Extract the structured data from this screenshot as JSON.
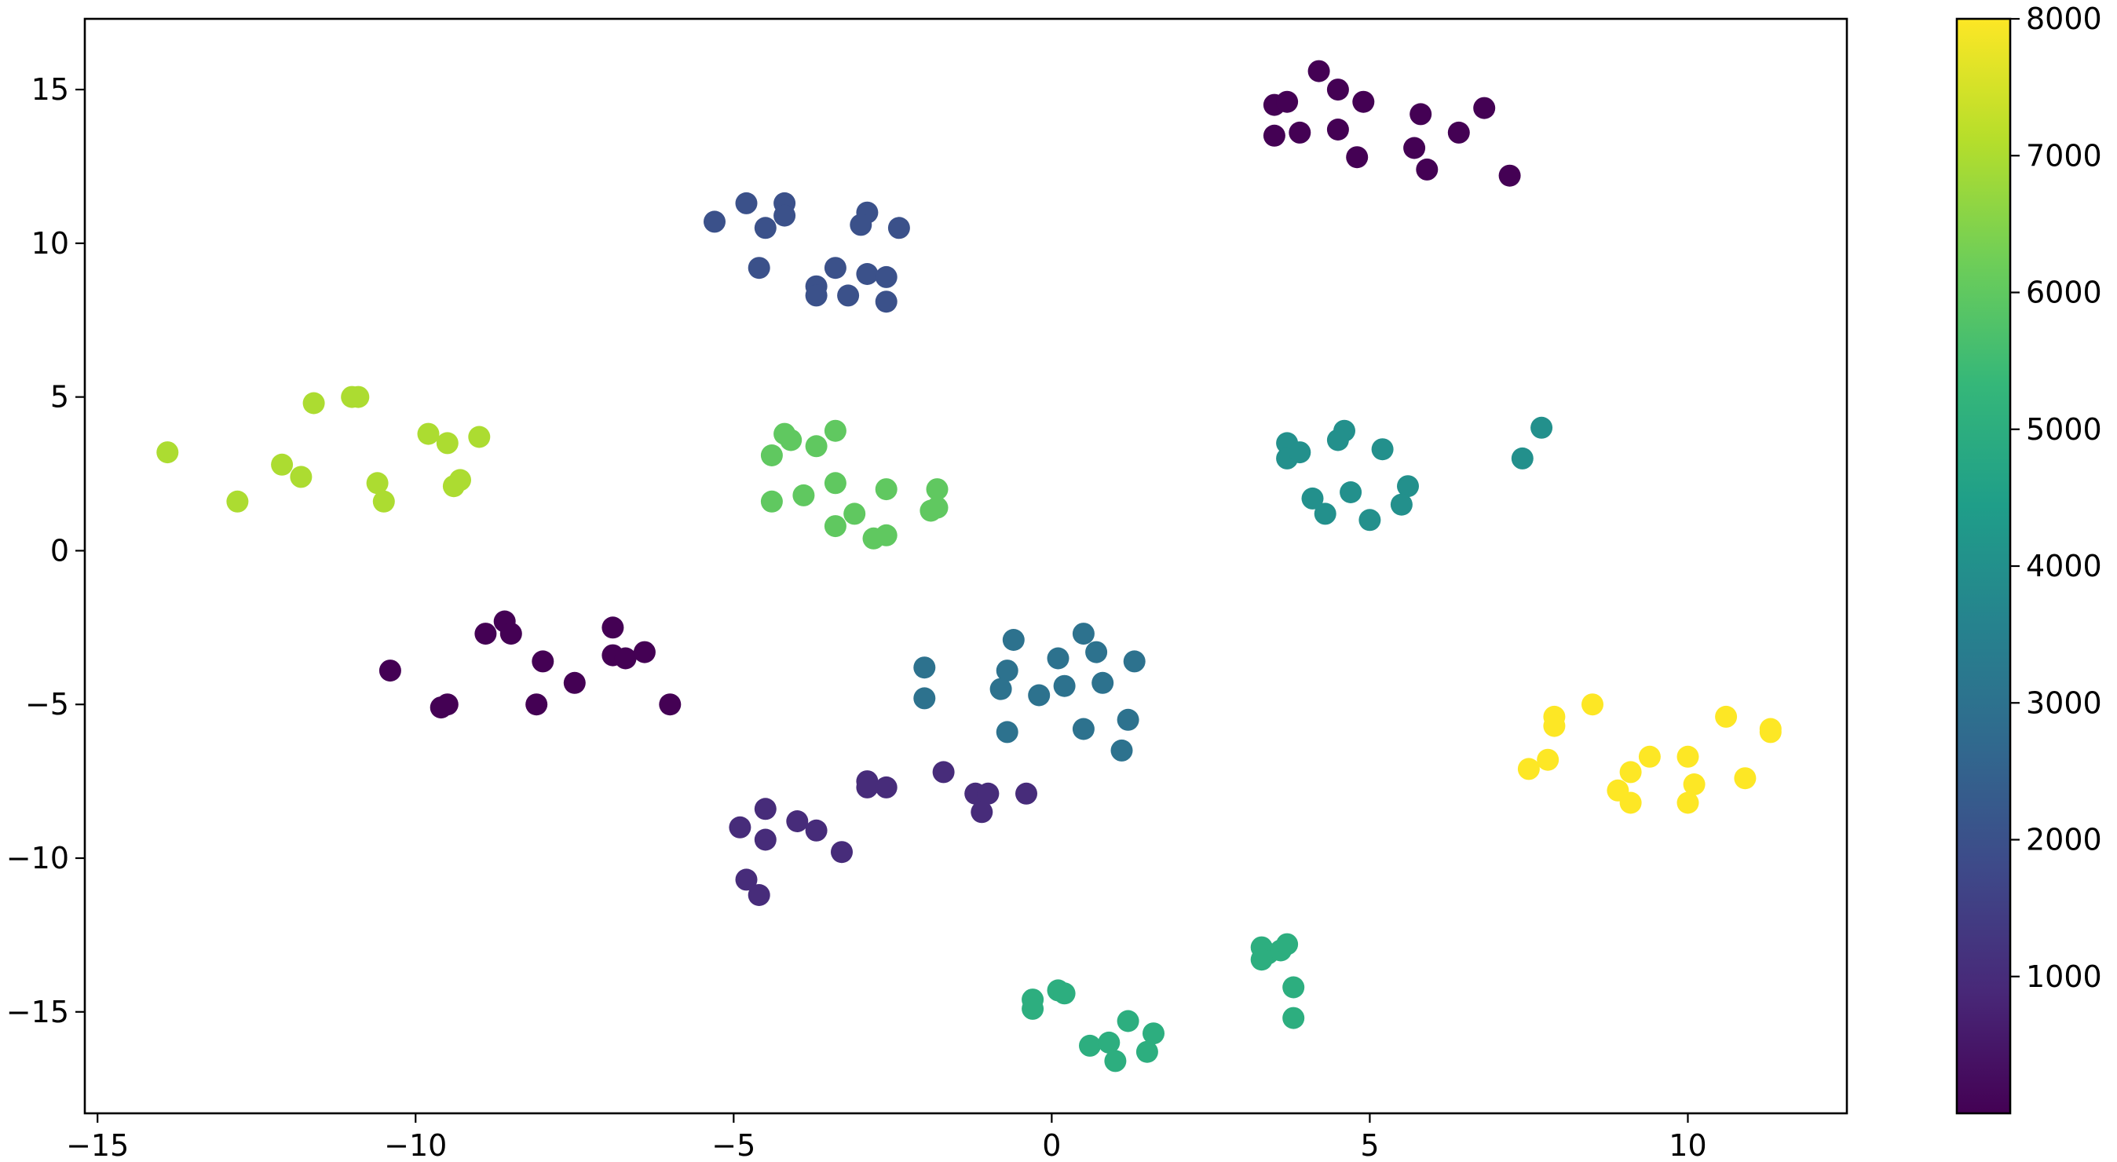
{
  "chart_data": {
    "type": "scatter",
    "title": "",
    "xlabel": "",
    "ylabel": "",
    "xlim": [
      -15.2,
      12.5
    ],
    "ylim": [
      -18.3,
      17.3
    ],
    "xticks": [
      -15,
      -10,
      -5,
      0,
      5,
      10
    ],
    "xtick_labels": [
      "−15",
      "−10",
      "−5",
      "0",
      "5",
      "10"
    ],
    "yticks": [
      -15,
      -10,
      -5,
      0,
      5,
      10,
      15
    ],
    "ytick_labels": [
      "−15",
      "−10",
      "−5",
      "0",
      "5",
      "10",
      "15"
    ],
    "grid": false,
    "colormap": "viridis",
    "colorbar": {
      "range": [
        0,
        8000
      ],
      "ticks": [
        1000,
        2000,
        3000,
        4000,
        5000,
        6000,
        7000,
        8000
      ],
      "tick_labels": [
        "1000",
        "2000",
        "3000",
        "4000",
        "5000",
        "6000",
        "7000",
        "8000"
      ]
    },
    "colormap_stops": [
      "#440154",
      "#482878",
      "#3e4989",
      "#31688e",
      "#26828e",
      "#1f9e89",
      "#35b779",
      "#6ece58",
      "#b5de2b",
      "#fde725"
    ],
    "groups": [
      {
        "value": 0,
        "points": [
          [
            4.2,
            15.6
          ],
          [
            3.5,
            14.5
          ],
          [
            3.7,
            14.6
          ],
          [
            4.5,
            15.0
          ],
          [
            4.9,
            14.6
          ],
          [
            5.8,
            14.2
          ],
          [
            6.8,
            14.4
          ],
          [
            3.5,
            13.5
          ],
          [
            3.9,
            13.6
          ],
          [
            4.5,
            13.7
          ],
          [
            5.7,
            13.1
          ],
          [
            6.4,
            13.6
          ],
          [
            4.8,
            12.8
          ],
          [
            5.9,
            12.4
          ],
          [
            7.2,
            12.2
          ]
        ]
      },
      {
        "value": 0,
        "points": [
          [
            -8.6,
            -2.3
          ],
          [
            -8.9,
            -2.7
          ],
          [
            -8.5,
            -2.7
          ],
          [
            -6.9,
            -2.5
          ],
          [
            -6.9,
            -3.4
          ],
          [
            -6.7,
            -3.5
          ],
          [
            -6.4,
            -3.3
          ],
          [
            -10.4,
            -3.9
          ],
          [
            -8.0,
            -3.6
          ],
          [
            -7.5,
            -4.3
          ],
          [
            -9.6,
            -5.1
          ],
          [
            -9.5,
            -5.0
          ],
          [
            -8.1,
            -5.0
          ],
          [
            -6.0,
            -5.0
          ]
        ]
      },
      {
        "value": 1000,
        "points": [
          [
            -2.9,
            -7.5
          ],
          [
            -2.9,
            -7.7
          ],
          [
            -2.6,
            -7.7
          ],
          [
            -1.7,
            -7.2
          ],
          [
            -1.2,
            -7.9
          ],
          [
            -1.0,
            -7.9
          ],
          [
            -0.4,
            -7.9
          ],
          [
            -1.1,
            -8.5
          ],
          [
            -4.5,
            -8.4
          ],
          [
            -4.0,
            -8.8
          ],
          [
            -3.7,
            -9.1
          ],
          [
            -4.9,
            -9.0
          ],
          [
            -4.5,
            -9.4
          ],
          [
            -3.3,
            -9.8
          ],
          [
            -4.8,
            -10.7
          ],
          [
            -4.6,
            -11.2
          ]
        ]
      },
      {
        "value": 2000,
        "points": [
          [
            -5.3,
            10.7
          ],
          [
            -4.8,
            11.3
          ],
          [
            -4.5,
            10.5
          ],
          [
            -4.2,
            11.3
          ],
          [
            -4.2,
            10.9
          ],
          [
            -2.9,
            11.0
          ],
          [
            -3.0,
            10.6
          ],
          [
            -2.4,
            10.5
          ],
          [
            -4.6,
            9.2
          ],
          [
            -3.4,
            9.2
          ],
          [
            -2.9,
            9.0
          ],
          [
            -2.6,
            8.9
          ],
          [
            -3.7,
            8.6
          ],
          [
            -3.7,
            8.3
          ],
          [
            -3.2,
            8.3
          ],
          [
            -2.6,
            8.1
          ]
        ]
      },
      {
        "value": 3000,
        "points": [
          [
            -2.0,
            -3.8
          ],
          [
            -0.6,
            -2.9
          ],
          [
            0.5,
            -2.7
          ],
          [
            0.7,
            -3.3
          ],
          [
            1.3,
            -3.6
          ],
          [
            0.1,
            -3.5
          ],
          [
            -0.7,
            -3.9
          ],
          [
            -0.8,
            -4.5
          ],
          [
            -0.2,
            -4.7
          ],
          [
            0.2,
            -4.4
          ],
          [
            0.8,
            -4.3
          ],
          [
            -2.0,
            -4.8
          ],
          [
            -0.7,
            -5.9
          ],
          [
            0.5,
            -5.8
          ],
          [
            1.2,
            -5.5
          ],
          [
            1.1,
            -6.5
          ]
        ]
      },
      {
        "value": 4000,
        "points": [
          [
            4.6,
            3.9
          ],
          [
            4.5,
            3.6
          ],
          [
            3.7,
            3.5
          ],
          [
            3.7,
            3.0
          ],
          [
            3.9,
            3.2
          ],
          [
            5.2,
            3.3
          ],
          [
            7.7,
            4.0
          ],
          [
            7.4,
            3.0
          ],
          [
            4.1,
            1.7
          ],
          [
            4.3,
            1.2
          ],
          [
            4.7,
            1.9
          ],
          [
            5.6,
            2.1
          ],
          [
            5.5,
            1.5
          ],
          [
            5.0,
            1.0
          ]
        ]
      },
      {
        "value": 5000,
        "points": [
          [
            3.3,
            -12.9
          ],
          [
            3.4,
            -13.1
          ],
          [
            3.6,
            -13.0
          ],
          [
            3.7,
            -12.8
          ],
          [
            3.3,
            -13.3
          ],
          [
            3.8,
            -14.2
          ],
          [
            3.8,
            -15.2
          ],
          [
            0.1,
            -14.3
          ],
          [
            0.2,
            -14.4
          ],
          [
            -0.3,
            -14.6
          ],
          [
            -0.3,
            -14.9
          ],
          [
            1.2,
            -15.3
          ],
          [
            1.6,
            -15.7
          ],
          [
            0.6,
            -16.1
          ],
          [
            0.9,
            -16.0
          ],
          [
            1.5,
            -16.3
          ],
          [
            1.0,
            -16.6
          ]
        ]
      },
      {
        "value": 6000,
        "points": [
          [
            -4.2,
            3.8
          ],
          [
            -3.4,
            3.9
          ],
          [
            -4.1,
            3.6
          ],
          [
            -3.7,
            3.4
          ],
          [
            -4.4,
            3.1
          ],
          [
            -3.4,
            2.2
          ],
          [
            -3.9,
            1.8
          ],
          [
            -2.6,
            2.0
          ],
          [
            -1.8,
            2.0
          ],
          [
            -4.4,
            1.6
          ],
          [
            -3.1,
            1.2
          ],
          [
            -1.9,
            1.3
          ],
          [
            -1.8,
            1.4
          ],
          [
            -3.4,
            0.8
          ],
          [
            -2.8,
            0.4
          ],
          [
            -2.6,
            0.5
          ]
        ]
      },
      {
        "value": 7000,
        "points": [
          [
            -11.0,
            5.0
          ],
          [
            -10.9,
            5.0
          ],
          [
            -11.6,
            4.8
          ],
          [
            -9.8,
            3.8
          ],
          [
            -9.5,
            3.5
          ],
          [
            -9.0,
            3.7
          ],
          [
            -13.9,
            3.2
          ],
          [
            -12.1,
            2.8
          ],
          [
            -11.8,
            2.4
          ],
          [
            -10.6,
            2.2
          ],
          [
            -9.3,
            2.3
          ],
          [
            -9.4,
            2.1
          ],
          [
            -12.8,
            1.6
          ],
          [
            -10.5,
            1.6
          ]
        ]
      },
      {
        "value": 8000,
        "points": [
          [
            7.9,
            -5.4
          ],
          [
            8.5,
            -5.0
          ],
          [
            7.9,
            -5.7
          ],
          [
            10.6,
            -5.4
          ],
          [
            11.3,
            -5.8
          ],
          [
            11.3,
            -5.9
          ],
          [
            7.8,
            -6.8
          ],
          [
            7.5,
            -7.1
          ],
          [
            9.1,
            -7.2
          ],
          [
            9.4,
            -6.7
          ],
          [
            10.0,
            -6.7
          ],
          [
            10.9,
            -7.4
          ],
          [
            8.9,
            -7.8
          ],
          [
            10.1,
            -7.6
          ],
          [
            9.1,
            -8.2
          ],
          [
            10.0,
            -8.2
          ]
        ]
      }
    ]
  }
}
